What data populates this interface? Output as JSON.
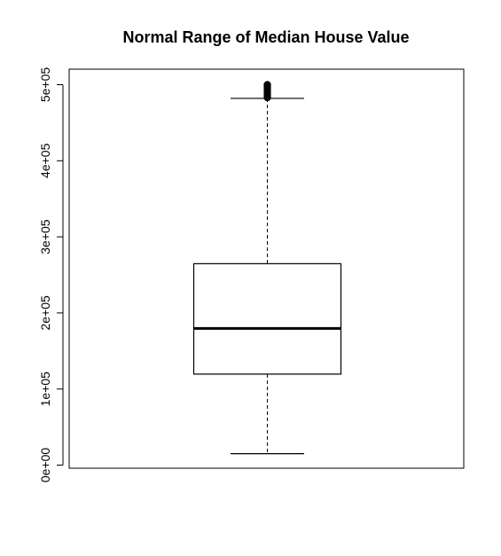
{
  "chart_data": {
    "type": "boxplot",
    "title": "Normal Range of Median House Value",
    "xlabel": "",
    "ylabel": "",
    "ylim": [
      -5000,
      520000
    ],
    "yticks": [
      0,
      100000,
      200000,
      300000,
      400000,
      500000
    ],
    "ytick_labels": [
      "0e+00",
      "1e+05",
      "2e+05",
      "3e+05",
      "4e+05",
      "5e+05"
    ],
    "box": {
      "lower_whisker": 15000,
      "q1": 119600,
      "median": 179700,
      "q3": 264700,
      "upper_whisker": 482000
    },
    "outliers": [
      483000,
      484000,
      485000,
      486000,
      487000,
      488000,
      489000,
      490000,
      491000,
      492000,
      493000,
      494000,
      495000,
      496000,
      497000,
      498000,
      499000,
      500000,
      500001
    ],
    "grid": false,
    "legend": "none"
  }
}
